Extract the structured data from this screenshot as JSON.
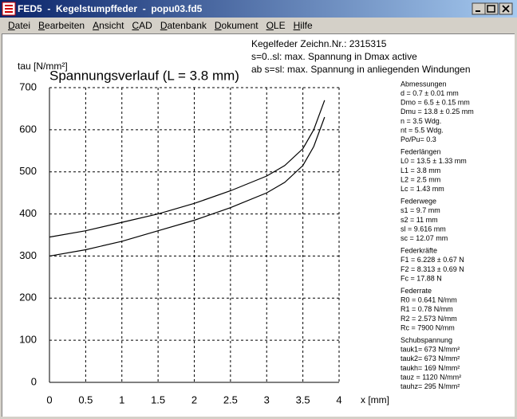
{
  "window": {
    "title": "FED5  -  Kegelstumpffeder  -  popu03.fd5"
  },
  "menu": [
    "Datei",
    "Bearbeiten",
    "Ansicht",
    "CAD",
    "Datenbank",
    "Dokument",
    "OLE",
    "Hilfe"
  ],
  "header": [
    "Kegelfeder  Zeichn.Nr.: 2315315",
    "s=0..sl: max. Spannung in Dmax active",
    "ab s=sl: max. Spannung in anliegenden Windungen"
  ],
  "panel": [
    {
      "heading": "Abmessungen",
      "lines": [
        "d   = 0.7 ± 0.01 mm",
        "Dmo = 6.5 ± 0.15 mm",
        "Dmu = 13.8 ± 0.25 mm",
        "n   = 3.5 Wdg.",
        "nt  = 5.5 Wdg.",
        "Po/Pu= 0.3"
      ]
    },
    {
      "heading": "Federlängen",
      "lines": [
        "L0 = 13.5 ± 1.33 mm",
        "L1 = 3.8 mm",
        "L2 = 2.5 mm",
        "Lc = 1.43 mm"
      ]
    },
    {
      "heading": "Federwege",
      "lines": [
        "s1 = 9.7 mm",
        "s2 = 11 mm",
        "sl = 9.616 mm",
        "sc = 12.07 mm"
      ]
    },
    {
      "heading": "Federkräfte",
      "lines": [
        "F1 = 6.228 ± 0.67 N",
        "F2 = 8.313 ± 0.69 N",
        "Fc = 17.88 N"
      ]
    },
    {
      "heading": "Federrate",
      "lines": [
        "R0 = 0.641 N/mm",
        "R1 = 0.78 N/mm",
        "R2 = 2.573 N/mm",
        "Rc = 7900 N/mm"
      ]
    },
    {
      "heading": "Schubspannung",
      "lines": [
        "tauk1=  673 N/mm²",
        "tauk2=  673 N/mm²",
        "taukh=  169 N/mm²",
        "tauz =  1120 N/mm²",
        "tauhz=  295 N/mm²"
      ]
    }
  ],
  "chart_data": {
    "type": "line",
    "title": "Spannungsverlauf (L = 3.8 mm)",
    "y_label": "tau [N/mm²]",
    "x_label": "x [mm]",
    "x": [
      0,
      0.5,
      1,
      1.5,
      2,
      2.5,
      3,
      3.25,
      3.5,
      3.65,
      3.8
    ],
    "series": [
      {
        "color": "#000000",
        "values": [
          345,
          360,
          380,
          400,
          425,
          455,
          490,
          515,
          555,
          600,
          670
        ]
      },
      {
        "color": "#000000",
        "values": [
          300,
          315,
          335,
          360,
          385,
          415,
          450,
          475,
          515,
          560,
          630
        ]
      }
    ],
    "xlim": [
      0,
      4
    ],
    "xticks": [
      0,
      0.5,
      1,
      1.5,
      2,
      2.5,
      3,
      3.5,
      4
    ],
    "ylim": [
      0,
      700
    ],
    "yticks": [
      0,
      100,
      200,
      300,
      400,
      500,
      600,
      700
    ],
    "grid": true
  }
}
